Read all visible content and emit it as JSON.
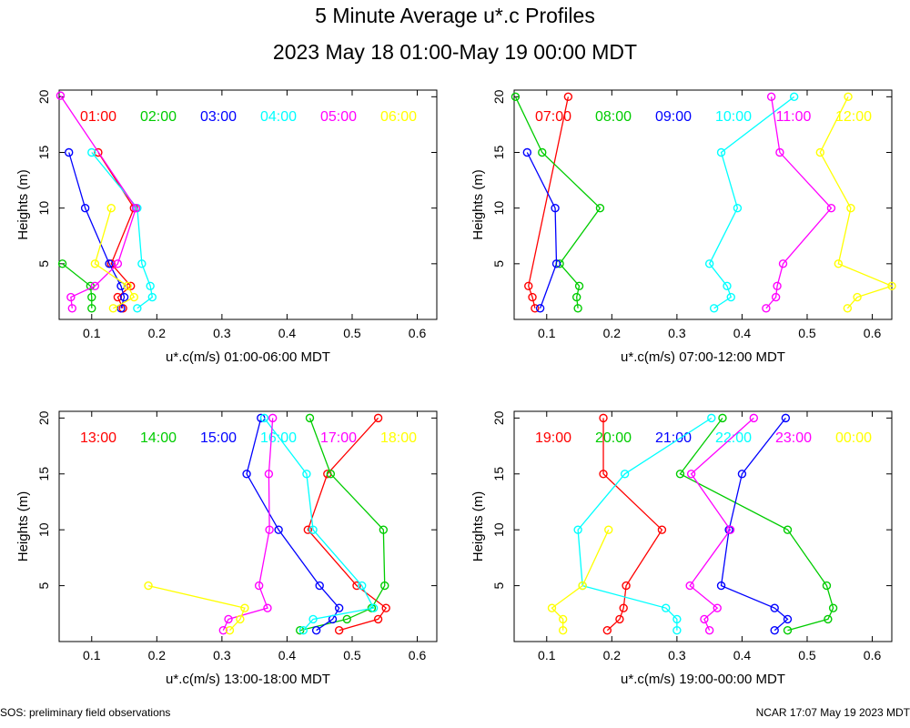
{
  "page": {
    "title": "5 Minute Average u*.c Profiles",
    "subtitle": "2023 May 18 01:00-May 19 00:00 MDT",
    "footer_left": "SOS: preliminary field observations",
    "footer_right": "NCAR 17:07 May 19 2023 MDT"
  },
  "colors": [
    "#ff0000",
    "#00cc00",
    "#0000ff",
    "#00ffff",
    "#ff00ff",
    "#ffff00"
  ],
  "chart_data": [
    {
      "type": "line",
      "title": "",
      "xlabel": "u*.c(m/s) 01:00-06:00 MDT",
      "ylabel": "Heights (m)",
      "xlim": [
        0.05,
        0.63
      ],
      "ylim": [
        0,
        20.6
      ],
      "xticks": [
        0.1,
        0.2,
        0.3,
        0.4,
        0.5,
        0.6
      ],
      "yticks": [
        5,
        10,
        15,
        20
      ],
      "series": [
        {
          "name": "01:00",
          "color": "#ff0000",
          "points": [
            [
              0.148,
              1
            ],
            [
              0.14,
              2
            ],
            [
              0.16,
              3
            ],
            [
              0.13,
              5
            ],
            [
              0.165,
              10
            ],
            [
              0.11,
              15
            ]
          ]
        },
        {
          "name": "02:00",
          "color": "#00cc00",
          "points": [
            [
              0.1,
              1
            ],
            [
              0.1,
              2
            ],
            [
              0.098,
              3
            ],
            [
              0.055,
              5
            ]
          ]
        },
        {
          "name": "03:00",
          "color": "#0000ff",
          "points": [
            [
              0.145,
              1
            ],
            [
              0.15,
              2
            ],
            [
              0.145,
              3
            ],
            [
              0.127,
              5
            ],
            [
              0.09,
              10
            ],
            [
              0.065,
              15
            ]
          ]
        },
        {
          "name": "04:00",
          "color": "#00ffff",
          "points": [
            [
              0.17,
              1
            ],
            [
              0.193,
              2
            ],
            [
              0.19,
              3
            ],
            [
              0.177,
              5
            ],
            [
              0.17,
              10
            ],
            [
              0.1,
              15
            ]
          ]
        },
        {
          "name": "05:00",
          "color": "#ff00ff",
          "points": [
            [
              0.07,
              1
            ],
            [
              0.068,
              2
            ],
            [
              0.105,
              3
            ],
            [
              0.14,
              5
            ],
            [
              0.168,
              10
            ],
            [
              0.052,
              20.1
            ]
          ]
        },
        {
          "name": "06:00",
          "color": "#ffff00",
          "points": [
            [
              0.133,
              1
            ],
            [
              0.165,
              2
            ],
            [
              0.155,
              3
            ],
            [
              0.105,
              5
            ],
            [
              0.13,
              10
            ]
          ]
        }
      ]
    },
    {
      "type": "line",
      "title": "",
      "xlabel": "u*.c(m/s) 07:00-12:00 MDT",
      "ylabel": "Heights (m)",
      "xlim": [
        0.05,
        0.63
      ],
      "ylim": [
        0,
        20.6
      ],
      "xticks": [
        0.1,
        0.2,
        0.3,
        0.4,
        0.5,
        0.6
      ],
      "yticks": [
        5,
        10,
        15,
        20
      ],
      "series": [
        {
          "name": "07:00",
          "color": "#ff0000",
          "points": [
            [
              0.082,
              1
            ],
            [
              0.078,
              2
            ],
            [
              0.072,
              3
            ],
            [
              0.133,
              20
            ]
          ]
        },
        {
          "name": "08:00",
          "color": "#00cc00",
          "points": [
            [
              0.148,
              1
            ],
            [
              0.146,
              2
            ],
            [
              0.15,
              3
            ],
            [
              0.12,
              5
            ],
            [
              0.182,
              10
            ],
            [
              0.093,
              15
            ],
            [
              0.052,
              20
            ]
          ]
        },
        {
          "name": "09:00",
          "color": "#0000ff",
          "points": [
            [
              0.09,
              1
            ],
            [
              0.115,
              5
            ],
            [
              0.113,
              10
            ],
            [
              0.07,
              15
            ]
          ]
        },
        {
          "name": "10:00",
          "color": "#00ffff",
          "points": [
            [
              0.357,
              1
            ],
            [
              0.383,
              2
            ],
            [
              0.377,
              3
            ],
            [
              0.35,
              5
            ],
            [
              0.393,
              10
            ],
            [
              0.368,
              15
            ],
            [
              0.48,
              20
            ]
          ]
        },
        {
          "name": "11:00",
          "color": "#ff00ff",
          "points": [
            [
              0.437,
              1
            ],
            [
              0.452,
              2
            ],
            [
              0.454,
              3
            ],
            [
              0.463,
              5
            ],
            [
              0.537,
              10
            ],
            [
              0.458,
              15
            ],
            [
              0.445,
              20
            ]
          ]
        },
        {
          "name": "12:00",
          "color": "#ffff00",
          "points": [
            [
              0.562,
              1
            ],
            [
              0.577,
              2
            ],
            [
              0.63,
              3
            ],
            [
              0.548,
              5
            ],
            [
              0.567,
              10
            ],
            [
              0.52,
              15
            ],
            [
              0.563,
              20
            ]
          ]
        }
      ]
    },
    {
      "type": "line",
      "title": "",
      "xlabel": "u*.c(m/s) 13:00-18:00 MDT",
      "ylabel": "Heights (m)",
      "xlim": [
        0.05,
        0.63
      ],
      "ylim": [
        0,
        20.6
      ],
      "xticks": [
        0.1,
        0.2,
        0.3,
        0.4,
        0.5,
        0.6
      ],
      "yticks": [
        5,
        10,
        15,
        20
      ],
      "series": [
        {
          "name": "13:00",
          "color": "#ff0000",
          "points": [
            [
              0.48,
              1
            ],
            [
              0.54,
              2
            ],
            [
              0.552,
              3
            ],
            [
              0.507,
              5
            ],
            [
              0.432,
              10
            ],
            [
              0.462,
              15
            ],
            [
              0.54,
              20
            ]
          ]
        },
        {
          "name": "14:00",
          "color": "#00cc00",
          "points": [
            [
              0.42,
              1
            ],
            [
              0.492,
              2
            ],
            [
              0.53,
              3
            ],
            [
              0.55,
              5
            ],
            [
              0.548,
              10
            ],
            [
              0.467,
              15
            ],
            [
              0.435,
              20
            ]
          ]
        },
        {
          "name": "15:00",
          "color": "#0000ff",
          "points": [
            [
              0.445,
              1
            ],
            [
              0.47,
              2
            ],
            [
              0.48,
              3
            ],
            [
              0.45,
              5
            ],
            [
              0.387,
              10
            ],
            [
              0.338,
              15
            ],
            [
              0.36,
              20
            ]
          ]
        },
        {
          "name": "16:00",
          "color": "#00ffff",
          "points": [
            [
              0.425,
              1
            ],
            [
              0.44,
              2
            ],
            [
              0.533,
              3
            ],
            [
              0.515,
              5
            ],
            [
              0.44,
              10
            ],
            [
              0.43,
              15
            ],
            [
              0.365,
              20
            ]
          ]
        },
        {
          "name": "17:00",
          "color": "#ff00ff",
          "points": [
            [
              0.302,
              1
            ],
            [
              0.31,
              2
            ],
            [
              0.37,
              3
            ],
            [
              0.357,
              5
            ],
            [
              0.373,
              10
            ],
            [
              0.372,
              15
            ],
            [
              0.378,
              20
            ]
          ]
        },
        {
          "name": "18:00",
          "color": "#ffff00",
          "points": [
            [
              0.312,
              1
            ],
            [
              0.328,
              2
            ],
            [
              0.335,
              3
            ],
            [
              0.187,
              5
            ]
          ]
        }
      ]
    },
    {
      "type": "line",
      "title": "",
      "xlabel": "u*.c(m/s) 19:00-00:00 MDT",
      "ylabel": "Heights (m)",
      "xlim": [
        0.05,
        0.63
      ],
      "ylim": [
        0,
        20.6
      ],
      "xticks": [
        0.1,
        0.2,
        0.3,
        0.4,
        0.5,
        0.6
      ],
      "yticks": [
        5,
        10,
        15,
        20
      ],
      "series": [
        {
          "name": "19:00",
          "color": "#ff0000",
          "points": [
            [
              0.193,
              1
            ],
            [
              0.212,
              2
            ],
            [
              0.218,
              3
            ],
            [
              0.222,
              5
            ],
            [
              0.277,
              10
            ],
            [
              0.187,
              15
            ],
            [
              0.187,
              20
            ]
          ]
        },
        {
          "name": "20:00",
          "color": "#00cc00",
          "points": [
            [
              0.47,
              1
            ],
            [
              0.532,
              2
            ],
            [
              0.54,
              3
            ],
            [
              0.53,
              5
            ],
            [
              0.47,
              10
            ],
            [
              0.305,
              15
            ],
            [
              0.37,
              20
            ]
          ]
        },
        {
          "name": "21:00",
          "color": "#0000ff",
          "points": [
            [
              0.45,
              1
            ],
            [
              0.47,
              2
            ],
            [
              0.45,
              3
            ],
            [
              0.368,
              5
            ],
            [
              0.38,
              10
            ],
            [
              0.4,
              15
            ],
            [
              0.467,
              20
            ]
          ]
        },
        {
          "name": "22:00",
          "color": "#00ffff",
          "points": [
            [
              0.3,
              1
            ],
            [
              0.3,
              2
            ],
            [
              0.283,
              3
            ],
            [
              0.155,
              5
            ],
            [
              0.148,
              10
            ],
            [
              0.22,
              15
            ],
            [
              0.353,
              20
            ]
          ]
        },
        {
          "name": "23:00",
          "color": "#ff00ff",
          "points": [
            [
              0.35,
              1
            ],
            [
              0.342,
              2
            ],
            [
              0.362,
              3
            ],
            [
              0.32,
              5
            ],
            [
              0.382,
              10
            ],
            [
              0.322,
              15
            ],
            [
              0.418,
              20
            ]
          ]
        },
        {
          "name": "00:00",
          "color": "#ffff00",
          "points": [
            [
              0.125,
              1
            ],
            [
              0.125,
              2
            ],
            [
              0.108,
              3
            ],
            [
              0.155,
              5
            ],
            [
              0.195,
              10
            ]
          ]
        }
      ]
    }
  ]
}
